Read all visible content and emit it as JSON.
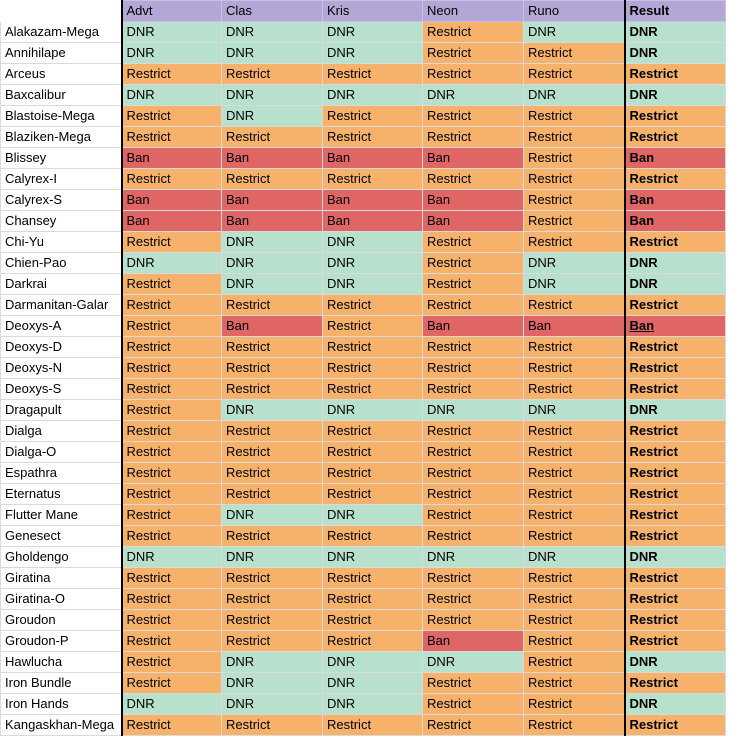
{
  "headers": [
    "Advt",
    "Clas",
    "Kris",
    "Neon",
    "Runo",
    "Result"
  ],
  "colors": {
    "DNR": "#b7e1cd",
    "Restrict": "#f6b26b",
    "Ban": "#e06666",
    "header": "#b4a7d6"
  },
  "rows": [
    {
      "name": "Alakazam-Mega",
      "values": [
        "DNR",
        "DNR",
        "DNR",
        "Restrict",
        "DNR",
        "DNR"
      ]
    },
    {
      "name": "Annihilape",
      "values": [
        "DNR",
        "DNR",
        "DNR",
        "Restrict",
        "Restrict",
        "DNR"
      ]
    },
    {
      "name": "Arceus",
      "values": [
        "Restrict",
        "Restrict",
        "Restrict",
        "Restrict",
        "Restrict",
        "Restrict"
      ]
    },
    {
      "name": "Baxcalibur",
      "values": [
        "DNR",
        "DNR",
        "DNR",
        "DNR",
        "DNR",
        "DNR"
      ]
    },
    {
      "name": "Blastoise-Mega",
      "values": [
        "Restrict",
        "DNR",
        "Restrict",
        "Restrict",
        "Restrict",
        "Restrict"
      ]
    },
    {
      "name": "Blaziken-Mega",
      "values": [
        "Restrict",
        "Restrict",
        "Restrict",
        "Restrict",
        "Restrict",
        "Restrict"
      ]
    },
    {
      "name": "Blissey",
      "values": [
        "Ban",
        "Ban",
        "Ban",
        "Ban",
        "Restrict",
        "Ban"
      ]
    },
    {
      "name": "Calyrex-I",
      "values": [
        "Restrict",
        "Restrict",
        "Restrict",
        "Restrict",
        "Restrict",
        "Restrict"
      ]
    },
    {
      "name": "Calyrex-S",
      "values": [
        "Ban",
        "Ban",
        "Ban",
        "Ban",
        "Restrict",
        "Ban"
      ]
    },
    {
      "name": "Chansey",
      "values": [
        "Ban",
        "Ban",
        "Ban",
        "Ban",
        "Restrict",
        "Ban"
      ]
    },
    {
      "name": "Chi-Yu",
      "values": [
        "Restrict",
        "DNR",
        "DNR",
        "Restrict",
        "Restrict",
        "Restrict"
      ]
    },
    {
      "name": "Chien-Pao",
      "values": [
        "DNR",
        "DNR",
        "DNR",
        "Restrict",
        "DNR",
        "DNR"
      ]
    },
    {
      "name": "Darkrai",
      "values": [
        "Restrict",
        "DNR",
        "DNR",
        "Restrict",
        "DNR",
        "DNR"
      ]
    },
    {
      "name": "Darmanitan-Galar",
      "values": [
        "Restrict",
        "Restrict",
        "Restrict",
        "Restrict",
        "Restrict",
        "Restrict"
      ]
    },
    {
      "name": "Deoxys-A",
      "values": [
        "Restrict",
        "Ban",
        "Restrict",
        "Ban",
        "Ban",
        "Ban"
      ],
      "result_underline": true
    },
    {
      "name": "Deoxys-D",
      "values": [
        "Restrict",
        "Restrict",
        "Restrict",
        "Restrict",
        "Restrict",
        "Restrict"
      ]
    },
    {
      "name": "Deoxys-N",
      "values": [
        "Restrict",
        "Restrict",
        "Restrict",
        "Restrict",
        "Restrict",
        "Restrict"
      ]
    },
    {
      "name": "Deoxys-S",
      "values": [
        "Restrict",
        "Restrict",
        "Restrict",
        "Restrict",
        "Restrict",
        "Restrict"
      ]
    },
    {
      "name": "Dragapult",
      "values": [
        "Restrict",
        "DNR",
        "DNR",
        "DNR",
        "DNR",
        "DNR"
      ]
    },
    {
      "name": "Dialga",
      "values": [
        "Restrict",
        "Restrict",
        "Restrict",
        "Restrict",
        "Restrict",
        "Restrict"
      ]
    },
    {
      "name": "Dialga-O",
      "values": [
        "Restrict",
        "Restrict",
        "Restrict",
        "Restrict",
        "Restrict",
        "Restrict"
      ]
    },
    {
      "name": "Espathra",
      "values": [
        "Restrict",
        "Restrict",
        "Restrict",
        "Restrict",
        "Restrict",
        "Restrict"
      ]
    },
    {
      "name": "Eternatus",
      "values": [
        "Restrict",
        "Restrict",
        "Restrict",
        "Restrict",
        "Restrict",
        "Restrict"
      ]
    },
    {
      "name": "Flutter Mane",
      "values": [
        "Restrict",
        "DNR",
        "DNR",
        "Restrict",
        "Restrict",
        "Restrict"
      ]
    },
    {
      "name": "Genesect",
      "values": [
        "Restrict",
        "Restrict",
        "Restrict",
        "Restrict",
        "Restrict",
        "Restrict"
      ]
    },
    {
      "name": "Gholdengo",
      "values": [
        "DNR",
        "DNR",
        "DNR",
        "DNR",
        "DNR",
        "DNR"
      ]
    },
    {
      "name": "Giratina",
      "values": [
        "Restrict",
        "Restrict",
        "Restrict",
        "Restrict",
        "Restrict",
        "Restrict"
      ]
    },
    {
      "name": "Giratina-O",
      "values": [
        "Restrict",
        "Restrict",
        "Restrict",
        "Restrict",
        "Restrict",
        "Restrict"
      ]
    },
    {
      "name": "Groudon",
      "values": [
        "Restrict",
        "Restrict",
        "Restrict",
        "Restrict",
        "Restrict",
        "Restrict"
      ]
    },
    {
      "name": "Groudon-P",
      "values": [
        "Restrict",
        "Restrict",
        "Restrict",
        "Ban",
        "Restrict",
        "Restrict"
      ],
      "bold_cells": [
        3
      ]
    },
    {
      "name": "Hawlucha",
      "values": [
        "Restrict",
        "DNR",
        "DNR",
        "DNR",
        "Restrict",
        "DNR"
      ]
    },
    {
      "name": "Iron Bundle",
      "values": [
        "Restrict",
        "DNR",
        "DNR",
        "Restrict",
        "Restrict",
        "Restrict"
      ]
    },
    {
      "name": "Iron Hands",
      "values": [
        "DNR",
        "DNR",
        "DNR",
        "Restrict",
        "Restrict",
        "DNR"
      ]
    },
    {
      "name": "Kangaskhan-Mega",
      "values": [
        "Restrict",
        "Restrict",
        "Restrict",
        "Restrict",
        "Restrict",
        "Restrict"
      ]
    }
  ]
}
